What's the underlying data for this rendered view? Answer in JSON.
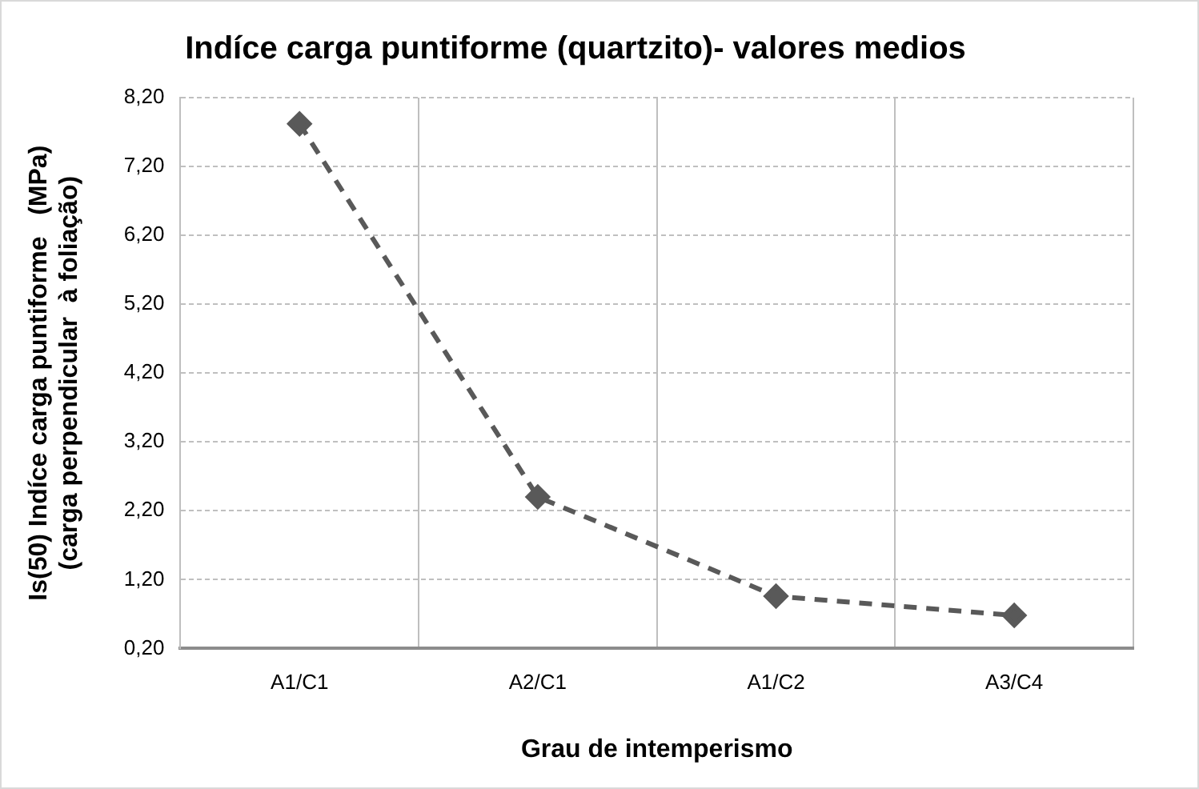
{
  "chart_data": {
    "type": "line",
    "title": "Indíce carga puntiforme (quartzito)- valores medios",
    "xlabel": "Grau de intemperismo",
    "ylabel": "Is(50) Indíce carga puntiforme   (MPa)\n(carga perpendicular  à foliação)",
    "categories": [
      "A1/C1",
      "A2/C1",
      "A1/C2",
      "A3/C4"
    ],
    "series": [
      {
        "color": "#595959",
        "values": [
          7.82,
          2.4,
          0.96,
          0.68
        ]
      }
    ],
    "ylim": [
      0.2,
      8.2
    ],
    "yticks": [
      {
        "value": 0.2,
        "label": "0,20"
      },
      {
        "value": 1.2,
        "label": "1,20"
      },
      {
        "value": 2.2,
        "label": "2,20"
      },
      {
        "value": 3.2,
        "label": "3,20"
      },
      {
        "value": 4.2,
        "label": "4,20"
      },
      {
        "value": 5.2,
        "label": "5,20"
      },
      {
        "value": 6.2,
        "label": "6,20"
      },
      {
        "value": 7.2,
        "label": "7,20"
      },
      {
        "value": 8.2,
        "label": "8,20"
      }
    ],
    "grid": true,
    "legend": false,
    "marker": "diamond",
    "line_style": "dashed"
  }
}
